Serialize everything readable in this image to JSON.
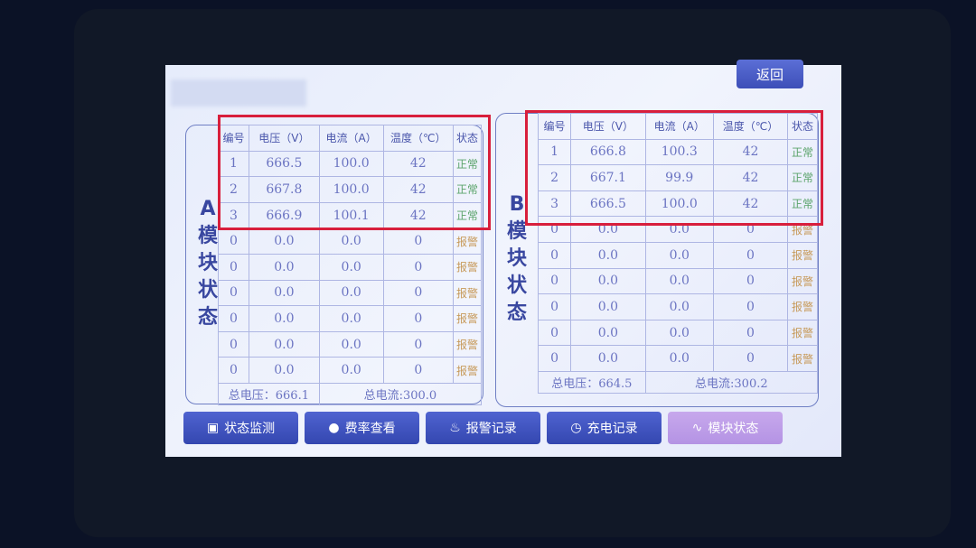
{
  "header": {
    "back_label": "返回"
  },
  "columns": [
    "编号",
    "电压（V）",
    "电流（A）",
    "温度（℃）",
    "状态"
  ],
  "panel_a": {
    "label": [
      "A",
      "模",
      "块",
      "状",
      "态"
    ],
    "rows": [
      [
        "1",
        "666.5",
        "100.0",
        "42",
        "正常"
      ],
      [
        "2",
        "667.8",
        "100.0",
        "42",
        "正常"
      ],
      [
        "3",
        "666.9",
        "100.1",
        "42",
        "正常"
      ],
      [
        "0",
        "0.0",
        "0.0",
        "0",
        "报警"
      ],
      [
        "0",
        "0.0",
        "0.0",
        "0",
        "报警"
      ],
      [
        "0",
        "0.0",
        "0.0",
        "0",
        "报警"
      ],
      [
        "0",
        "0.0",
        "0.0",
        "0",
        "报警"
      ],
      [
        "0",
        "0.0",
        "0.0",
        "0",
        "报警"
      ],
      [
        "0",
        "0.0",
        "0.0",
        "0",
        "报警"
      ]
    ],
    "total_voltage": "总电压：666.1",
    "total_current": "总电流:300.0"
  },
  "panel_b": {
    "label": [
      "B",
      "模",
      "块",
      "状",
      "态"
    ],
    "rows": [
      [
        "1",
        "666.8",
        "100.3",
        "42",
        "正常"
      ],
      [
        "2",
        "667.1",
        "99.9",
        "42",
        "正常"
      ],
      [
        "3",
        "666.5",
        "100.0",
        "42",
        "正常"
      ],
      [
        "0",
        "0.0",
        "0.0",
        "0",
        "报警"
      ],
      [
        "0",
        "0.0",
        "0.0",
        "0",
        "报警"
      ],
      [
        "0",
        "0.0",
        "0.0",
        "0",
        "报警"
      ],
      [
        "0",
        "0.0",
        "0.0",
        "0",
        "报警"
      ],
      [
        "0",
        "0.0",
        "0.0",
        "0",
        "报警"
      ],
      [
        "0",
        "0.0",
        "0.0",
        "0",
        "报警"
      ]
    ],
    "total_voltage": "总电压：664.5",
    "total_current": "总电流:300.2"
  },
  "nav": [
    {
      "label": "状态监测",
      "icon": "monitor-icon",
      "glyph": "▣"
    },
    {
      "label": "费率查看",
      "icon": "rate-icon",
      "glyph": "●"
    },
    {
      "label": "报警记录",
      "icon": "alarm-icon",
      "glyph": "♨"
    },
    {
      "label": "充电记录",
      "icon": "clock-icon",
      "glyph": "◷"
    },
    {
      "label": "模块状态",
      "icon": "chart-line-icon",
      "glyph": "∿",
      "active": true
    }
  ],
  "colors": {
    "normal": "#5aa36a",
    "alarm": "#c79a5a",
    "highlight": "#d81f3c",
    "button": "#3d4fb8"
  }
}
